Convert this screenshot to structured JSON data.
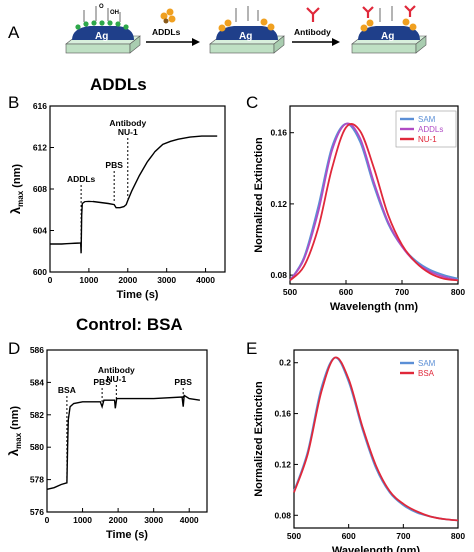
{
  "panel_a": {
    "letter": "A",
    "chip_label": "Ag",
    "step1_label": "ADDLs",
    "step2_label": "Antibody",
    "chem_oh": "OH",
    "chem_o": "O"
  },
  "colors": {
    "sam": "#5B8FD6",
    "addls": "#B04CC4",
    "nu1": "#E0283A",
    "bsa": "#E0283A",
    "trace": "#000000",
    "chip": "#1f3f8a",
    "substrate": "#bfe0c4",
    "sphere": "#f0a020"
  },
  "chart_data": [
    {
      "panel": "B",
      "type": "line",
      "title": "ADDLs",
      "xlabel": "Time (s)",
      "ylabel_main": "λ",
      "ylabel_sub": "max",
      "ylabel_unit": " (nm)",
      "xlim": [
        0,
        4500
      ],
      "ylim": [
        600,
        616
      ],
      "xticks": [
        0,
        1000,
        2000,
        3000,
        4000
      ],
      "yticks": [
        600,
        604,
        608,
        612,
        616
      ],
      "series": [
        {
          "points": [
            [
              0,
              602.7
            ],
            [
              300,
              602.7
            ],
            [
              790,
              602.8
            ],
            [
              800,
              601.8
            ],
            [
              815,
              605.5
            ],
            [
              830,
              606.6
            ],
            [
              900,
              606.8
            ],
            [
              1100,
              606.8
            ],
            [
              1300,
              606.7
            ],
            [
              1500,
              606.6
            ],
            [
              1650,
              606.5
            ],
            [
              1700,
              606.2
            ],
            [
              1800,
              606.2
            ],
            [
              1900,
              606.3
            ],
            [
              1960,
              606.5
            ],
            [
              2000,
              606.9
            ],
            [
              2100,
              607.8
            ],
            [
              2300,
              609.3
            ],
            [
              2500,
              610.6
            ],
            [
              2700,
              611.6
            ],
            [
              2900,
              612.3
            ],
            [
              3100,
              612.6
            ],
            [
              3300,
              612.8
            ],
            [
              3600,
              613.0
            ],
            [
              3900,
              613.1
            ],
            [
              4300,
              613.1
            ]
          ]
        }
      ],
      "annotations": [
        {
          "text": "ADDLs",
          "x": 800
        },
        {
          "text": "PBS",
          "x": 1650
        },
        {
          "text": "Antibody",
          "x": 2000,
          "line2": "NU-1"
        }
      ]
    },
    {
      "panel": "C",
      "type": "line",
      "xlabel": "Wavelength (nm)",
      "ylabel": "Normalized Extinction",
      "xlim": [
        500,
        800
      ],
      "ylim": [
        0.075,
        0.175
      ],
      "xticks": [
        500,
        600,
        700,
        800
      ],
      "yticks": [
        0.08,
        0.12,
        0.16
      ],
      "legend_position": "top-right",
      "series": [
        {
          "name": "SAM",
          "x": [
            500,
            525,
            550,
            575,
            600,
            625,
            650,
            675,
            700,
            725,
            750,
            775,
            800
          ],
          "values": [
            0.077,
            0.09,
            0.118,
            0.152,
            0.165,
            0.155,
            0.13,
            0.109,
            0.096,
            0.088,
            0.083,
            0.08,
            0.078
          ]
        },
        {
          "name": "ADDLs",
          "x": [
            500,
            525,
            550,
            575,
            600,
            625,
            650,
            675,
            700,
            725,
            750,
            775,
            800
          ],
          "values": [
            0.077,
            0.089,
            0.115,
            0.15,
            0.165,
            0.157,
            0.132,
            0.11,
            0.096,
            0.087,
            0.082,
            0.079,
            0.077
          ]
        },
        {
          "name": "NU-1",
          "x": [
            500,
            525,
            550,
            575,
            600,
            625,
            650,
            675,
            700,
            725,
            750,
            775,
            800
          ],
          "values": [
            0.077,
            0.085,
            0.106,
            0.14,
            0.163,
            0.161,
            0.14,
            0.114,
            0.097,
            0.087,
            0.081,
            0.078,
            0.077
          ]
        }
      ]
    },
    {
      "panel": "D",
      "type": "line",
      "title": "Control: BSA",
      "xlabel": "Time (s)",
      "ylabel_main": "λ",
      "ylabel_sub": "max",
      "ylabel_unit": " (nm)",
      "xlim": [
        0,
        4500
      ],
      "ylim": [
        576,
        586
      ],
      "xticks": [
        0,
        1000,
        2000,
        3000,
        4000
      ],
      "yticks": [
        576,
        578,
        580,
        582,
        584,
        586
      ],
      "series": [
        {
          "points": [
            [
              0,
              577.4
            ],
            [
              200,
              577.5
            ],
            [
              400,
              577.7
            ],
            [
              560,
              577.8
            ],
            [
              580,
              580.0
            ],
            [
              600,
              581.7
            ],
            [
              650,
              582.5
            ],
            [
              750,
              582.7
            ],
            [
              1000,
              582.8
            ],
            [
              1500,
              582.8
            ],
            [
              1550,
              582.5
            ],
            [
              1600,
              582.9
            ],
            [
              1900,
              582.9
            ],
            [
              1920,
              582.4
            ],
            [
              1960,
              583.0
            ],
            [
              2400,
              583.0
            ],
            [
              3000,
              583.0
            ],
            [
              3800,
              583.1
            ],
            [
              3830,
              582.5
            ],
            [
              3860,
              583.2
            ],
            [
              4000,
              583.0
            ],
            [
              4300,
              582.9
            ]
          ]
        }
      ],
      "annotations": [
        {
          "text": "BSA",
          "x": 560
        },
        {
          "text": "PBS",
          "x": 1550
        },
        {
          "text": "Antibody",
          "x": 1950,
          "line2": "NU-1"
        },
        {
          "text": "PBS",
          "x": 3830
        }
      ]
    },
    {
      "panel": "E",
      "type": "line",
      "xlabel": "Wavelength (nm)",
      "ylabel": "Normalized Extinction",
      "xlim": [
        500,
        800
      ],
      "ylim": [
        0.07,
        0.21
      ],
      "xticks": [
        500,
        600,
        700,
        800
      ],
      "yticks": [
        0.08,
        0.12,
        0.16,
        0.2
      ],
      "legend_position": "top-right",
      "series": [
        {
          "name": "SAM",
          "x": [
            500,
            525,
            550,
            575,
            600,
            625,
            650,
            675,
            700,
            725,
            750,
            775,
            800
          ],
          "values": [
            0.099,
            0.13,
            0.18,
            0.204,
            0.185,
            0.148,
            0.117,
            0.098,
            0.088,
            0.082,
            0.079,
            0.077,
            0.076
          ]
        },
        {
          "name": "BSA",
          "x": [
            500,
            525,
            550,
            575,
            600,
            625,
            650,
            675,
            700,
            725,
            750,
            775,
            800
          ],
          "values": [
            0.098,
            0.128,
            0.177,
            0.204,
            0.187,
            0.15,
            0.119,
            0.099,
            0.089,
            0.083,
            0.079,
            0.077,
            0.076
          ]
        }
      ]
    }
  ]
}
